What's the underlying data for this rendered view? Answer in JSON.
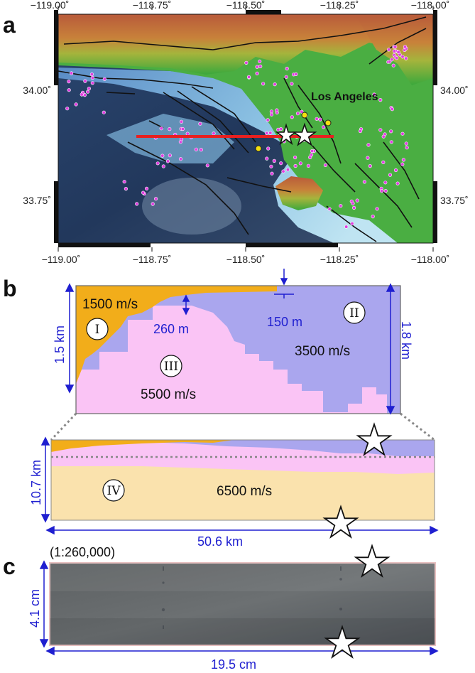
{
  "panels": {
    "a": {
      "letter": "a",
      "top_ticks": [
        "−119.00˚",
        "−118.75˚",
        "−118.50˚",
        "−118.25˚",
        "−118.00˚"
      ],
      "bottom_ticks": [
        "−119.00˚",
        "−118.75˚",
        "−118.50˚",
        "−118.25˚",
        "−118.00˚"
      ],
      "left_ticks": [
        "34.00˚",
        "33.75˚"
      ],
      "right_ticks": [
        "34.00˚",
        "33.75˚"
      ],
      "city_label": "Los Angeles"
    },
    "b": {
      "letter": "b",
      "depth_label": "1.5 km",
      "right_depth_label": "1.8 km",
      "thickness_150": "150 m",
      "thickness_260": "260 m",
      "vel_I": "1500 m/s",
      "vel_II": "3500 m/s",
      "vel_III": "5500 m/s",
      "vel_IV": "6500 m/s",
      "layer_I": "I",
      "layer_II": "II",
      "layer_III": "III",
      "layer_IV": "IV",
      "full_depth_label": "10.7 km",
      "width_label": "50.6 km"
    },
    "c": {
      "letter": "c",
      "scale_label": "(1:260,000)",
      "height_label": "4.1 cm",
      "width_label": "19.5 cm"
    }
  },
  "colors": {
    "layer_I": "#f2ad1a",
    "layer_II": "#aaa6ee",
    "layer_III": "#fac4f5",
    "layer_IV": "#fae2ad",
    "dimension": "#1f1fd0",
    "profile_line": "#e82020",
    "stations": "#e040e0",
    "epicenters": "#f4e010"
  }
}
